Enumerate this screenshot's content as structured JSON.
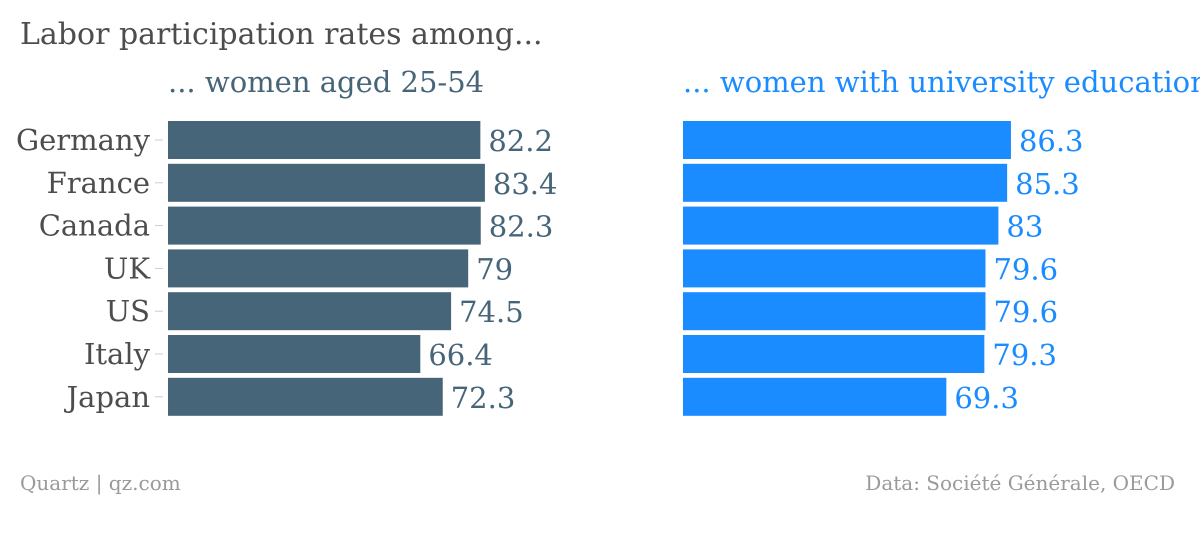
{
  "chart_data": {
    "type": "bar",
    "orientation": "horizontal",
    "title": "Labor participation rates among...",
    "categories": [
      "Germany",
      "France",
      "Canada",
      "UK",
      "US",
      "Italy",
      "Japan"
    ],
    "xlim": [
      0,
      100
    ],
    "grid": false,
    "legend": "none",
    "series": [
      {
        "name": "... women aged 25-54",
        "values": [
          82.2,
          83.4,
          82.3,
          79,
          74.5,
          66.4,
          72.3
        ],
        "value_labels": [
          "82.2",
          "83.4",
          "82.3",
          "79",
          "74.5",
          "66.4",
          "72.3"
        ],
        "color": "#476579"
      },
      {
        "name": "... women with university education",
        "values": [
          86.3,
          85.3,
          83,
          79.6,
          79.6,
          79.3,
          69.3
        ],
        "value_labels": [
          "86.3",
          "85.3",
          "83",
          "79.6",
          "79.6",
          "79.3",
          "69.3"
        ],
        "color": "#1a8cff"
      }
    ]
  },
  "footer": {
    "credit": "Quartz | qz.com",
    "source": "Data: Société Générale, OECD"
  }
}
